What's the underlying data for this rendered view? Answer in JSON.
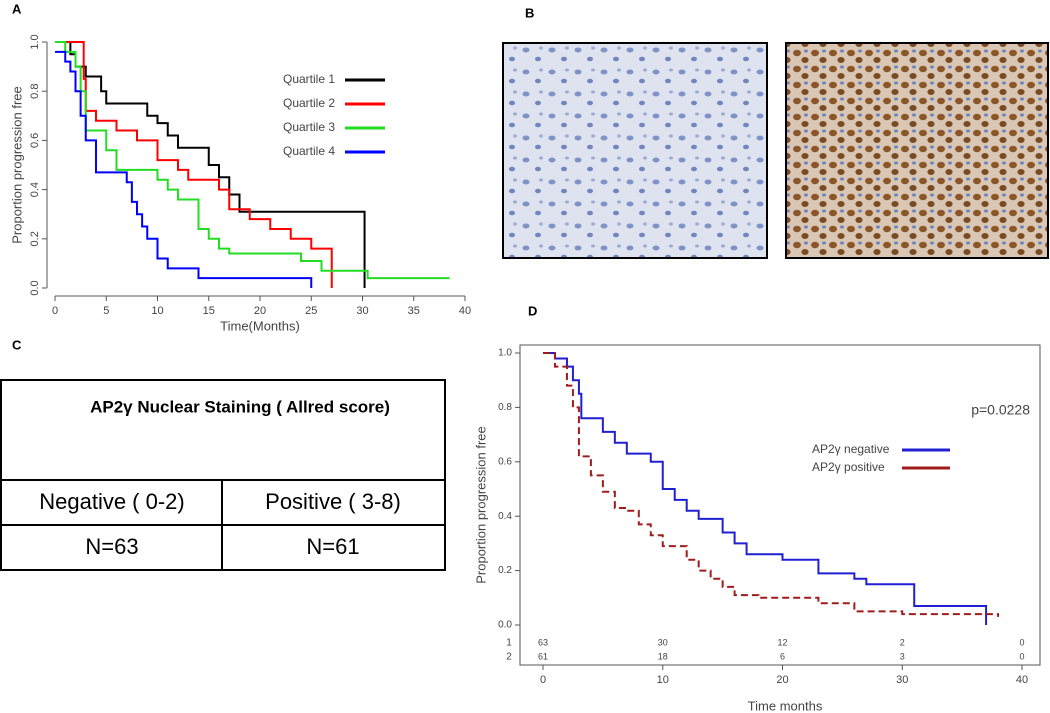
{
  "panels": [
    "A",
    "B",
    "C",
    "D"
  ],
  "table": {
    "header": "AP2γ  Nuclear Staining ( Allred score)",
    "rows": [
      [
        "Negative ( 0-2)",
        "Positive ( 3-8)"
      ],
      [
        "N=63",
        "N=61"
      ]
    ]
  },
  "chart_data": [
    {
      "type": "step",
      "x_label": "Time(Months)",
      "y_label": "Proportion progression free",
      "xlim": [
        0,
        40
      ],
      "xticks": [
        0,
        5,
        10,
        15,
        20,
        25,
        30,
        35,
        40
      ],
      "ylim": [
        0,
        1
      ],
      "yticks": [
        {
          "value": 0,
          "label": "0.0"
        },
        0.2,
        0.4,
        0.6,
        0.8,
        {
          "value": 1,
          "label": "1.0"
        }
      ],
      "frame": "axes",
      "legend": "top right",
      "series": [
        {
          "name": "Quartile 1",
          "color": "#000000",
          "x": [
            0,
            1.5,
            2,
            3,
            4.5,
            5,
            9,
            10,
            11,
            12,
            15,
            16,
            17,
            18,
            30.2
          ],
          "values": [
            1,
            0.95,
            0.9,
            0.86,
            0.8,
            0.75,
            0.7,
            0.67,
            0.62,
            0.57,
            0.5,
            0.45,
            0.38,
            0.31,
            0
          ]
        },
        {
          "name": "Quartile 2",
          "color": "#ff0000",
          "x": [
            0,
            2.8,
            3,
            4,
            6,
            8,
            10,
            12,
            13,
            16,
            17,
            19,
            21,
            23,
            25,
            27
          ],
          "values": [
            1,
            0.85,
            0.72,
            0.68,
            0.64,
            0.6,
            0.52,
            0.48,
            0.44,
            0.4,
            0.32,
            0.28,
            0.24,
            0.2,
            0.16,
            0
          ]
        },
        {
          "name": "Quartile 3",
          "color": "#22dd22",
          "x": [
            0,
            1,
            2,
            2.5,
            3,
            5,
            6,
            10,
            11,
            12,
            14,
            15,
            16,
            17,
            24,
            26,
            30.5,
            38.5
          ],
          "values": [
            1,
            0.96,
            0.9,
            0.8,
            0.64,
            0.56,
            0.48,
            0.44,
            0.4,
            0.36,
            0.24,
            0.2,
            0.16,
            0.14,
            0.11,
            0.07,
            0.04,
            0.04
          ]
        },
        {
          "name": "Quartile 4",
          "color": "#0000ff",
          "x": [
            0,
            1,
            1.5,
            2,
            2.5,
            3,
            4,
            7,
            7.5,
            8,
            8.5,
            9,
            10,
            11,
            14,
            25
          ],
          "values": [
            0.96,
            0.92,
            0.88,
            0.8,
            0.7,
            0.6,
            0.47,
            0.43,
            0.35,
            0.3,
            0.25,
            0.2,
            0.12,
            0.08,
            0.04,
            0
          ]
        }
      ]
    },
    {
      "type": "step",
      "x_label": "Time months",
      "y_label": "Proportion progression free",
      "annotation": "p=0.0228",
      "xlim": [
        0,
        40
      ],
      "xticks": [
        0,
        10,
        20,
        30,
        40
      ],
      "ylim": [
        0,
        1
      ],
      "yticks": [
        {
          "value": 0,
          "label": "0.0"
        },
        0.2,
        0.4,
        0.6,
        0.8,
        {
          "value": 1,
          "label": "1.0"
        }
      ],
      "frame": "box",
      "legend": "top right",
      "series": [
        {
          "name": "AP2γ negative",
          "color": "#2020d0",
          "x": [
            0,
            1,
            2,
            2.5,
            3,
            3.2,
            5,
            6,
            7,
            9,
            10,
            11,
            12,
            13,
            15,
            16,
            17,
            20,
            23,
            26,
            27,
            31,
            37
          ],
          "values": [
            1,
            0.98,
            0.95,
            0.9,
            0.85,
            0.76,
            0.71,
            0.67,
            0.63,
            0.6,
            0.5,
            0.46,
            0.42,
            0.39,
            0.34,
            0.3,
            0.26,
            0.24,
            0.19,
            0.17,
            0.15,
            0.07,
            0
          ]
        },
        {
          "name": "AP2γ positive",
          "color": "#a01c1c",
          "dash": true,
          "x": [
            0,
            1,
            2,
            2.5,
            3,
            4,
            5,
            6,
            7,
            8,
            9,
            10,
            12,
            13,
            14,
            15,
            16,
            18,
            23,
            26,
            30,
            38
          ],
          "values": [
            1,
            0.95,
            0.88,
            0.8,
            0.62,
            0.55,
            0.49,
            0.43,
            0.42,
            0.37,
            0.33,
            0.29,
            0.24,
            0.2,
            0.17,
            0.14,
            0.11,
            0.1,
            0.08,
            0.05,
            0.04,
            0.03
          ]
        }
      ],
      "risk_table": {
        "rows": [
          "1",
          "2"
        ],
        "x": [
          0,
          10,
          20,
          30,
          40
        ],
        "counts": [
          [
            63,
            30,
            12,
            2,
            0
          ],
          [
            61,
            18,
            6,
            3,
            0
          ]
        ]
      }
    }
  ]
}
